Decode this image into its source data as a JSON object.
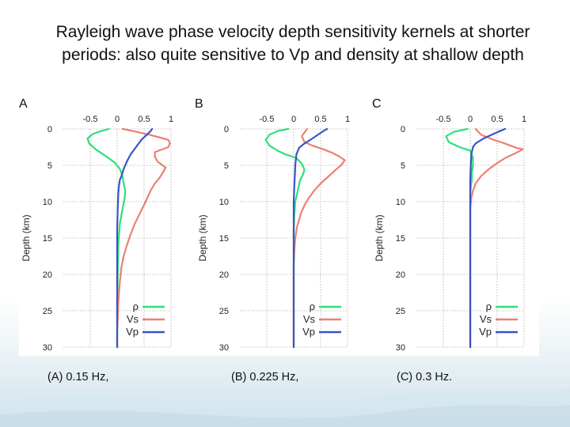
{
  "slide": {
    "title": "Rayleigh wave phase velocity depth sensitivity kernels at shorter periods: also quite sensitive to Vp and density at shallow depth",
    "captions": [
      "(A) 0.15 Hz,",
      "(B) 0.225 Hz,",
      "(C) 0.3 Hz."
    ]
  },
  "colors": {
    "rho": "#2ee07a",
    "vs": "#ec8072",
    "vp": "#3a54c6",
    "text": "#111111"
  },
  "chart_data": [
    {
      "type": "line",
      "panel": "A",
      "ylabel": "Depth (km)",
      "xlim": [
        -1.0,
        1.0
      ],
      "ylim": [
        0,
        30
      ],
      "xticks": [
        -0.5,
        0,
        0.5,
        1
      ],
      "xtick_labels": [
        "-0.5",
        "0",
        "0.5",
        "1"
      ],
      "yticks": [
        0,
        5,
        10,
        15,
        20,
        25,
        30
      ],
      "ytick_labels": [
        "0",
        "5",
        "10",
        "15",
        "20",
        "25",
        "30"
      ],
      "legend": [
        "ρ",
        "Vs",
        "Vp"
      ],
      "grid": true,
      "series": [
        {
          "name": "ρ",
          "points": [
            [
              -0.15,
              0
            ],
            [
              -0.3,
              0.3
            ],
            [
              -0.45,
              0.7
            ],
            [
              -0.55,
              1.3
            ],
            [
              -0.52,
              2
            ],
            [
              -0.4,
              2.8
            ],
            [
              -0.2,
              3.8
            ],
            [
              -0.05,
              4.6
            ],
            [
              0.05,
              5.5
            ],
            [
              0.1,
              6.5
            ],
            [
              0.12,
              7.5
            ],
            [
              0.15,
              8.5
            ],
            [
              0.14,
              9.5
            ],
            [
              0.1,
              11
            ],
            [
              0.05,
              13
            ],
            [
              0.02,
              16
            ],
            [
              0.01,
              20
            ],
            [
              0,
              24
            ],
            [
              0,
              30
            ]
          ]
        },
        {
          "name": "Vs",
          "points": [
            [
              0.1,
              0
            ],
            [
              0.3,
              0.3
            ],
            [
              0.6,
              0.8
            ],
            [
              0.8,
              1.2
            ],
            [
              0.95,
              1.5
            ],
            [
              0.98,
              2
            ],
            [
              0.95,
              2.5
            ],
            [
              0.7,
              3.2
            ],
            [
              0.7,
              3.8
            ],
            [
              0.75,
              4.5
            ],
            [
              0.9,
              5.3
            ],
            [
              0.85,
              6
            ],
            [
              0.78,
              6.8
            ],
            [
              0.7,
              7.5
            ],
            [
              0.62,
              8.5
            ],
            [
              0.53,
              10
            ],
            [
              0.43,
              11.5
            ],
            [
              0.33,
              13
            ],
            [
              0.25,
              14.5
            ],
            [
              0.18,
              16
            ],
            [
              0.12,
              17.5
            ],
            [
              0.08,
              19
            ],
            [
              0.05,
              21
            ],
            [
              0.02,
              24
            ],
            [
              0,
              28
            ],
            [
              0,
              30
            ]
          ]
        },
        {
          "name": "Vp",
          "points": [
            [
              0.65,
              0
            ],
            [
              0.62,
              0.3
            ],
            [
              0.55,
              0.8
            ],
            [
              0.45,
              1.5
            ],
            [
              0.35,
              2.5
            ],
            [
              0.25,
              3.5
            ],
            [
              0.18,
              4.5
            ],
            [
              0.12,
              5.5
            ],
            [
              0.08,
              6.5
            ],
            [
              0.05,
              7
            ],
            [
              0.03,
              8
            ],
            [
              0.02,
              9
            ],
            [
              0.01,
              11
            ],
            [
              0,
              14
            ],
            [
              0,
              30
            ]
          ]
        }
      ]
    },
    {
      "type": "line",
      "panel": "B",
      "ylabel": "Depth (km)",
      "xlim": [
        -1.0,
        1.0
      ],
      "ylim": [
        0,
        30
      ],
      "xticks": [
        -0.5,
        0,
        0.5,
        1
      ],
      "xtick_labels": [
        "-0.5",
        "0",
        "0.5",
        "1"
      ],
      "yticks": [
        0,
        5,
        10,
        15,
        20,
        25,
        30
      ],
      "ytick_labels": [
        "0",
        "5",
        "10",
        "15",
        "20",
        "25",
        "30"
      ],
      "legend": [
        "ρ",
        "Vs",
        "Vp"
      ],
      "grid": true,
      "series": [
        {
          "name": "ρ",
          "points": [
            [
              -0.1,
              0
            ],
            [
              -0.3,
              0.3
            ],
            [
              -0.45,
              0.8
            ],
            [
              -0.52,
              1.5
            ],
            [
              -0.45,
              2.3
            ],
            [
              -0.3,
              3
            ],
            [
              -0.15,
              3.5
            ],
            [
              0.05,
              4
            ],
            [
              0.15,
              4.8
            ],
            [
              0.2,
              5.6
            ],
            [
              0.17,
              6.3
            ],
            [
              0.12,
              7
            ],
            [
              0.09,
              8
            ],
            [
              0.06,
              9
            ],
            [
              0.03,
              10
            ],
            [
              0.01,
              12
            ],
            [
              0,
              14
            ],
            [
              0,
              30
            ]
          ]
        },
        {
          "name": "Vs",
          "points": [
            [
              0.25,
              0
            ],
            [
              0.15,
              1
            ],
            [
              0.2,
              1.8
            ],
            [
              0.35,
              2.3
            ],
            [
              0.55,
              2.8
            ],
            [
              0.72,
              3.3
            ],
            [
              0.85,
              3.8
            ],
            [
              0.95,
              4.3
            ],
            [
              0.88,
              5
            ],
            [
              0.8,
              5.5
            ],
            [
              0.65,
              6.5
            ],
            [
              0.5,
              7.5
            ],
            [
              0.38,
              8.5
            ],
            [
              0.28,
              9.5
            ],
            [
              0.2,
              10.5
            ],
            [
              0.14,
              11.5
            ],
            [
              0.1,
              12.5
            ],
            [
              0.06,
              13.5
            ],
            [
              0.03,
              15
            ],
            [
              0.01,
              17
            ],
            [
              0,
              19
            ],
            [
              0,
              30
            ]
          ]
        },
        {
          "name": "Vp",
          "points": [
            [
              0.62,
              0
            ],
            [
              0.55,
              0.3
            ],
            [
              0.45,
              0.8
            ],
            [
              0.35,
              1.3
            ],
            [
              0.2,
              2
            ],
            [
              0.1,
              2.6
            ],
            [
              0.05,
              3.5
            ],
            [
              0.03,
              5
            ],
            [
              0.02,
              6.5
            ],
            [
              0.01,
              8
            ],
            [
              0,
              10
            ],
            [
              0,
              30
            ]
          ]
        }
      ]
    },
    {
      "type": "line",
      "panel": "C",
      "ylabel": "Depth (km)",
      "xlim": [
        -1.0,
        1.0
      ],
      "ylim": [
        0,
        30
      ],
      "xticks": [
        -0.5,
        0,
        0.5,
        1
      ],
      "xtick_labels": [
        "-0.5",
        "0",
        "0.5",
        "1"
      ],
      "yticks": [
        0,
        5,
        10,
        15,
        20,
        25,
        30
      ],
      "ytick_labels": [
        "0",
        "5",
        "10",
        "15",
        "20",
        "25",
        "30"
      ],
      "legend": [
        "ρ",
        "Vs",
        "Vp"
      ],
      "grid": true,
      "series": [
        {
          "name": "ρ",
          "points": [
            [
              -0.05,
              0
            ],
            [
              -0.3,
              0.4
            ],
            [
              -0.45,
              1
            ],
            [
              -0.4,
              1.8
            ],
            [
              -0.2,
              2.5
            ],
            [
              0,
              3
            ],
            [
              0.05,
              4
            ],
            [
              0.05,
              5
            ],
            [
              0.03,
              6
            ],
            [
              0.03,
              7
            ],
            [
              0.01,
              8
            ],
            [
              0,
              9
            ],
            [
              0,
              30
            ]
          ]
        },
        {
          "name": "Vs",
          "points": [
            [
              0.1,
              0
            ],
            [
              0.2,
              0.8
            ],
            [
              0.4,
              1.4
            ],
            [
              0.6,
              1.9
            ],
            [
              0.75,
              2.3
            ],
            [
              0.85,
              2.6
            ],
            [
              0.98,
              2.8
            ],
            [
              0.85,
              3.3
            ],
            [
              0.65,
              4
            ],
            [
              0.5,
              4.7
            ],
            [
              0.35,
              5.5
            ],
            [
              0.2,
              6.5
            ],
            [
              0.1,
              7.5
            ],
            [
              0.05,
              8.5
            ],
            [
              0.02,
              9.5
            ],
            [
              0,
              11
            ],
            [
              0,
              30
            ]
          ]
        },
        {
          "name": "Vp",
          "points": [
            [
              0.65,
              0
            ],
            [
              0.55,
              0.3
            ],
            [
              0.4,
              0.8
            ],
            [
              0.25,
              1.3
            ],
            [
              0.1,
              2
            ],
            [
              0.05,
              2.5
            ],
            [
              0.02,
              3.5
            ],
            [
              0.01,
              5
            ],
            [
              0,
              7
            ],
            [
              0,
              30
            ]
          ]
        }
      ]
    }
  ]
}
